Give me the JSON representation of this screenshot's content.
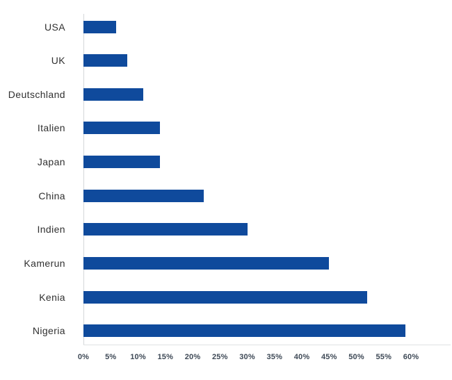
{
  "chart_data": {
    "type": "bar",
    "orientation": "horizontal",
    "title": "",
    "xlabel": "",
    "ylabel": "",
    "categories": [
      "USA",
      "UK",
      "Deutschland",
      "Italien",
      "Japan",
      "China",
      "Indien",
      "Kamerun",
      "Kenia",
      "Nigeria"
    ],
    "values": [
      6,
      8,
      11,
      14,
      14,
      22,
      30,
      45,
      52,
      59
    ],
    "unit": "%",
    "xlim": [
      0,
      60
    ],
    "x_tick_values": [
      0,
      5,
      10,
      15,
      20,
      25,
      30,
      35,
      40,
      45,
      50,
      55,
      60
    ],
    "x_tick_labels": [
      "0%",
      "5%",
      "10%",
      "15%",
      "20%",
      "25%",
      "30%",
      "35%",
      "40%",
      "45%",
      "50%",
      "55%",
      "60%"
    ],
    "grid": false,
    "legend": null,
    "colors": {
      "bar": "#0f4a9c",
      "y_axis_line": "#d4d7d9",
      "x_axis_line": "#dfe1e3",
      "category_label": "#303030",
      "tick_label": "#3e4956",
      "background": "#ffffff"
    }
  }
}
